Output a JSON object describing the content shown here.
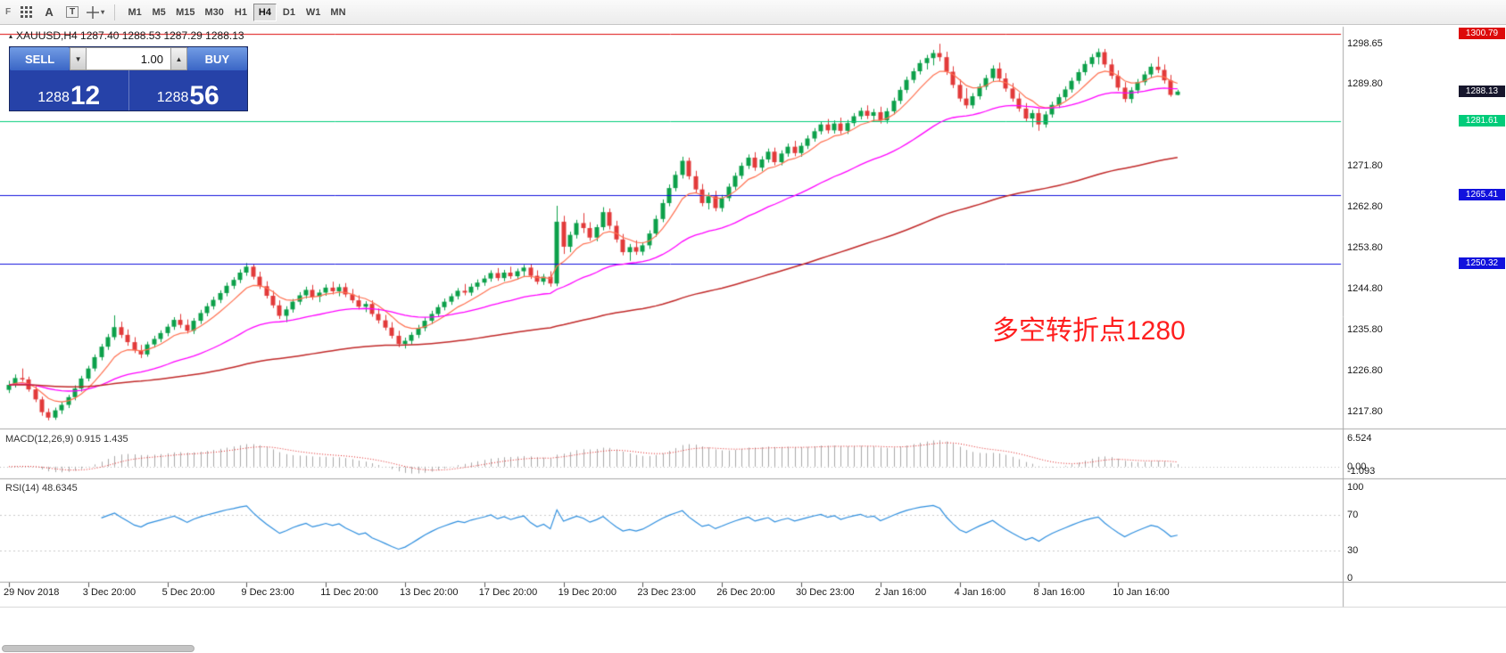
{
  "toolbar": {
    "letter_f": "F",
    "letter_a": "A",
    "letter_t": "T",
    "caret": "▾",
    "timeframes": [
      {
        "label": "M1",
        "active": false
      },
      {
        "label": "M5",
        "active": false
      },
      {
        "label": "M15",
        "active": false
      },
      {
        "label": "M30",
        "active": false
      },
      {
        "label": "H1",
        "active": false
      },
      {
        "label": "H4",
        "active": true
      },
      {
        "label": "D1",
        "active": false
      },
      {
        "label": "W1",
        "active": false
      },
      {
        "label": "MN",
        "active": false
      }
    ]
  },
  "header": {
    "marker": "▴",
    "symbol_line": "XAUUSD,H4  1287.40 1288.53 1287.29 1288.13"
  },
  "trade_panel": {
    "sell_label": "SELL",
    "buy_label": "BUY",
    "volume": "1.00",
    "spin_down": "▼",
    "spin_up": "▲",
    "sell_big": "1288",
    "sell_sup": "12",
    "buy_big": "1288",
    "buy_sup": "56"
  },
  "annotation": {
    "text": "多空转折点1280",
    "color": "#ff1f1f"
  },
  "panels": {
    "macd_label": "MACD(12,26,9) 0.915 1.435",
    "rsi_label": "RSI(14) 48.6345",
    "macd_axis": [
      {
        "text": "6.524",
        "value": 6.524
      },
      {
        "text": "0.00",
        "value": 0
      },
      {
        "text": "-1.093",
        "value": -1.093
      }
    ],
    "rsi_axis": [
      {
        "text": "100",
        "value": 100
      },
      {
        "text": "70",
        "value": 70
      },
      {
        "text": "30",
        "value": 30
      },
      {
        "text": "0",
        "value": 0
      }
    ]
  },
  "price_axis": {
    "labels": [
      {
        "text": "1298.65",
        "price": 1298.65
      },
      {
        "text": "1289.80",
        "price": 1289.8
      },
      {
        "text": "1271.80",
        "price": 1271.8
      },
      {
        "text": "1262.80",
        "price": 1262.8
      },
      {
        "text": "1253.80",
        "price": 1253.8
      },
      {
        "text": "1244.80",
        "price": 1244.8
      },
      {
        "text": "1235.80",
        "price": 1235.8
      },
      {
        "text": "1226.80",
        "price": 1226.8
      },
      {
        "text": "1217.80",
        "price": 1217.8
      }
    ],
    "badges": [
      {
        "text": "1300.79",
        "price": 1300.79,
        "bg": "#dd0b0b"
      },
      {
        "text": "1288.13",
        "price": 1288.13,
        "bg": "#16162c"
      },
      {
        "text": "1281.61",
        "price": 1281.61,
        "bg": "#00cc7a"
      },
      {
        "text": "1265.41",
        "price": 1265.41,
        "bg": "#1111dd"
      },
      {
        "text": "1250.32",
        "price": 1250.32,
        "bg": "#1111dd"
      }
    ]
  },
  "time_axis": {
    "labels": [
      {
        "text": "29 Nov 2018",
        "bar": 0
      },
      {
        "text": "3 Dec 20:00",
        "bar": 12
      },
      {
        "text": "5 Dec 20:00",
        "bar": 24
      },
      {
        "text": "9 Dec 23:00",
        "bar": 36
      },
      {
        "text": "11 Dec 20:00",
        "bar": 48
      },
      {
        "text": "13 Dec 20:00",
        "bar": 60
      },
      {
        "text": "17 Dec 20:00",
        "bar": 72
      },
      {
        "text": "19 Dec 20:00",
        "bar": 84
      },
      {
        "text": "23 Dec 23:00",
        "bar": 96
      },
      {
        "text": "26 Dec 20:00",
        "bar": 108
      },
      {
        "text": "30 Dec 23:00",
        "bar": 120
      },
      {
        "text": "2 Jan 16:00",
        "bar": 132
      },
      {
        "text": "4 Jan 16:00",
        "bar": 144
      },
      {
        "text": "8 Jan 16:00",
        "bar": 156
      },
      {
        "text": "10 Jan 16:00",
        "bar": 168
      }
    ]
  },
  "chart_data": {
    "type": "candlestick",
    "symbol": "XAUUSD",
    "timeframe": "H4",
    "current_ohlc": {
      "open": 1287.4,
      "high": 1288.53,
      "low": 1287.29,
      "close": 1288.13
    },
    "y_range": {
      "min": 1214.0,
      "max": 1302.4
    },
    "bar_spacing": 7.4,
    "colors": {
      "up": "#0ca04a",
      "down": "#e23a3a"
    },
    "hlines": [
      {
        "price": 1300.79,
        "color": "#dd0b0b"
      },
      {
        "price": 1281.61,
        "color": "#00cc7a"
      },
      {
        "price": 1265.41,
        "color": "#1111dd"
      },
      {
        "price": 1250.32,
        "color": "#1111dd"
      }
    ],
    "ma": [
      {
        "type": "ema",
        "period": 8,
        "color": "#ff7050",
        "width": 1.2
      },
      {
        "type": "ema",
        "period": 34,
        "color": "#ff00ff",
        "width": 1.3
      },
      {
        "type": "ema",
        "period": 120,
        "color": "#c02828",
        "width": 1.5
      }
    ],
    "macd_params": [
      12,
      26,
      9
    ],
    "macd_range": {
      "min": -2.3,
      "max": 7.8
    },
    "rsi_period": 14,
    "candles": [
      [
        1222.5,
        1224.5,
        1221.8,
        1223.6
      ],
      [
        1223.6,
        1225.9,
        1223.0,
        1225.1
      ],
      [
        1225.1,
        1227.2,
        1224.3,
        1224.8
      ],
      [
        1224.8,
        1225.4,
        1222.1,
        1222.6
      ],
      [
        1222.6,
        1223.3,
        1219.8,
        1220.4
      ],
      [
        1220.4,
        1221.0,
        1216.8,
        1217.6
      ],
      [
        1217.6,
        1218.4,
        1215.8,
        1216.4
      ],
      [
        1216.4,
        1218.6,
        1215.9,
        1218.0
      ],
      [
        1218.0,
        1219.9,
        1217.2,
        1219.2
      ],
      [
        1219.2,
        1221.4,
        1218.5,
        1220.9
      ],
      [
        1220.9,
        1223.5,
        1220.2,
        1222.8
      ],
      [
        1222.8,
        1225.6,
        1222.1,
        1225.0
      ],
      [
        1225.0,
        1227.8,
        1224.4,
        1227.2
      ],
      [
        1227.2,
        1230.3,
        1226.6,
        1229.7
      ],
      [
        1229.7,
        1232.6,
        1229.0,
        1232.0
      ],
      [
        1232.0,
        1234.8,
        1231.3,
        1234.1
      ],
      [
        1234.1,
        1238.9,
        1233.5,
        1236.3
      ],
      [
        1236.3,
        1237.5,
        1233.9,
        1234.6
      ],
      [
        1234.6,
        1235.8,
        1232.2,
        1233.0
      ],
      [
        1233.0,
        1234.1,
        1230.6,
        1231.2
      ],
      [
        1231.2,
        1232.4,
        1229.5,
        1230.3
      ],
      [
        1230.3,
        1233.1,
        1229.8,
        1232.5
      ],
      [
        1232.5,
        1234.4,
        1231.8,
        1233.7
      ],
      [
        1233.7,
        1235.6,
        1233.0,
        1235.0
      ],
      [
        1235.0,
        1237.0,
        1234.3,
        1236.4
      ],
      [
        1236.4,
        1238.5,
        1235.7,
        1237.9
      ],
      [
        1237.9,
        1239.2,
        1236.1,
        1236.8
      ],
      [
        1236.8,
        1238.0,
        1234.9,
        1235.5
      ],
      [
        1235.5,
        1238.3,
        1234.8,
        1237.7
      ],
      [
        1237.7,
        1240.1,
        1237.0,
        1239.4
      ],
      [
        1239.4,
        1241.6,
        1238.7,
        1240.9
      ],
      [
        1240.9,
        1243.0,
        1240.2,
        1242.3
      ],
      [
        1242.3,
        1244.4,
        1241.6,
        1243.8
      ],
      [
        1243.8,
        1246.1,
        1243.1,
        1245.4
      ],
      [
        1245.4,
        1247.3,
        1244.7,
        1246.7
      ],
      [
        1246.7,
        1249.0,
        1246.0,
        1248.3
      ],
      [
        1248.3,
        1250.4,
        1247.6,
        1249.6
      ],
      [
        1249.6,
        1250.2,
        1246.8,
        1247.4
      ],
      [
        1247.4,
        1248.5,
        1244.7,
        1245.3
      ],
      [
        1245.3,
        1246.4,
        1242.6,
        1243.2
      ],
      [
        1243.2,
        1244.3,
        1240.5,
        1241.1
      ],
      [
        1241.1,
        1242.2,
        1238.1,
        1238.8
      ],
      [
        1238.8,
        1240.9,
        1237.4,
        1240.2
      ],
      [
        1240.2,
        1242.5,
        1239.5,
        1241.9
      ],
      [
        1241.9,
        1244.0,
        1241.2,
        1243.3
      ],
      [
        1243.3,
        1245.2,
        1242.6,
        1244.5
      ],
      [
        1244.5,
        1245.6,
        1242.3,
        1243.0
      ],
      [
        1243.0,
        1244.6,
        1241.8,
        1243.9
      ],
      [
        1243.9,
        1245.7,
        1243.2,
        1245.0
      ],
      [
        1245.0,
        1246.3,
        1243.5,
        1244.2
      ],
      [
        1244.2,
        1245.8,
        1243.1,
        1245.1
      ],
      [
        1245.1,
        1246.0,
        1242.9,
        1243.5
      ],
      [
        1243.5,
        1244.7,
        1241.6,
        1242.2
      ],
      [
        1242.2,
        1243.3,
        1240.2,
        1240.8
      ],
      [
        1240.8,
        1242.0,
        1239.6,
        1241.4
      ],
      [
        1241.4,
        1242.2,
        1238.6,
        1239.2
      ],
      [
        1239.2,
        1240.4,
        1237.1,
        1237.8
      ],
      [
        1237.8,
        1239.0,
        1235.6,
        1236.2
      ],
      [
        1236.2,
        1237.4,
        1233.8,
        1234.4
      ],
      [
        1234.4,
        1235.5,
        1231.9,
        1232.6
      ],
      [
        1232.6,
        1234.0,
        1231.6,
        1233.3
      ],
      [
        1233.3,
        1235.2,
        1232.5,
        1234.6
      ],
      [
        1234.6,
        1236.8,
        1233.9,
        1236.1
      ],
      [
        1236.1,
        1238.4,
        1235.4,
        1237.7
      ],
      [
        1237.7,
        1239.9,
        1237.0,
        1239.2
      ],
      [
        1239.2,
        1241.3,
        1238.5,
        1240.7
      ],
      [
        1240.7,
        1242.6,
        1240.0,
        1241.9
      ],
      [
        1241.9,
        1243.7,
        1241.2,
        1243.1
      ],
      [
        1243.1,
        1244.9,
        1242.4,
        1244.3
      ],
      [
        1244.3,
        1245.8,
        1243.3,
        1243.9
      ],
      [
        1243.9,
        1245.9,
        1243.2,
        1245.2
      ],
      [
        1245.2,
        1246.8,
        1244.5,
        1246.1
      ],
      [
        1246.1,
        1247.7,
        1245.4,
        1247.0
      ],
      [
        1247.0,
        1248.8,
        1246.3,
        1248.2
      ],
      [
        1248.2,
        1249.3,
        1246.5,
        1247.1
      ],
      [
        1247.1,
        1248.9,
        1246.4,
        1248.3
      ],
      [
        1248.3,
        1249.6,
        1246.9,
        1247.5
      ],
      [
        1247.5,
        1249.2,
        1246.8,
        1248.6
      ],
      [
        1248.6,
        1250.0,
        1247.3,
        1249.4
      ],
      [
        1249.4,
        1250.1,
        1246.9,
        1247.6
      ],
      [
        1247.6,
        1248.8,
        1245.7,
        1246.3
      ],
      [
        1246.3,
        1248.0,
        1245.6,
        1247.4
      ],
      [
        1247.4,
        1248.6,
        1245.2,
        1245.9
      ],
      [
        1245.9,
        1263.0,
        1245.3,
        1259.5
      ],
      [
        1259.5,
        1260.8,
        1252.4,
        1254.0
      ],
      [
        1254.0,
        1257.3,
        1252.8,
        1256.6
      ],
      [
        1256.6,
        1259.9,
        1255.8,
        1259.2
      ],
      [
        1259.2,
        1261.4,
        1257.0,
        1258.1
      ],
      [
        1258.1,
        1259.4,
        1255.3,
        1256.0
      ],
      [
        1256.0,
        1258.9,
        1255.2,
        1258.3
      ],
      [
        1258.3,
        1262.7,
        1257.6,
        1261.6
      ],
      [
        1261.6,
        1262.4,
        1257.8,
        1258.6
      ],
      [
        1258.6,
        1259.7,
        1254.9,
        1255.6
      ],
      [
        1255.6,
        1256.8,
        1252.1,
        1252.8
      ],
      [
        1252.8,
        1254.6,
        1250.9,
        1253.9
      ],
      [
        1253.9,
        1255.4,
        1252.2,
        1252.9
      ],
      [
        1252.9,
        1255.0,
        1252.1,
        1254.3
      ],
      [
        1254.3,
        1257.6,
        1253.5,
        1256.9
      ],
      [
        1256.9,
        1260.9,
        1256.2,
        1260.1
      ],
      [
        1260.1,
        1264.4,
        1259.4,
        1263.6
      ],
      [
        1263.6,
        1267.7,
        1262.9,
        1266.9
      ],
      [
        1266.9,
        1270.6,
        1266.2,
        1269.8
      ],
      [
        1269.8,
        1273.8,
        1269.0,
        1272.9
      ],
      [
        1272.9,
        1273.6,
        1268.8,
        1269.5
      ],
      [
        1269.5,
        1270.7,
        1265.9,
        1266.6
      ],
      [
        1266.6,
        1267.8,
        1262.9,
        1263.6
      ],
      [
        1263.6,
        1265.9,
        1262.2,
        1265.1
      ],
      [
        1265.1,
        1266.3,
        1261.8,
        1262.5
      ],
      [
        1262.5,
        1265.4,
        1261.7,
        1264.7
      ],
      [
        1264.7,
        1267.9,
        1264.0,
        1267.2
      ],
      [
        1267.2,
        1270.3,
        1266.5,
        1269.6
      ],
      [
        1269.6,
        1272.5,
        1268.9,
        1271.8
      ],
      [
        1271.8,
        1274.3,
        1271.1,
        1273.6
      ],
      [
        1273.6,
        1274.8,
        1270.7,
        1271.4
      ],
      [
        1271.4,
        1273.9,
        1270.6,
        1273.2
      ],
      [
        1273.2,
        1275.6,
        1272.5,
        1274.9
      ],
      [
        1274.9,
        1275.8,
        1271.9,
        1272.6
      ],
      [
        1272.6,
        1275.2,
        1271.9,
        1274.5
      ],
      [
        1274.5,
        1276.7,
        1273.8,
        1276.0
      ],
      [
        1276.0,
        1277.3,
        1273.9,
        1274.6
      ],
      [
        1274.6,
        1276.9,
        1273.8,
        1276.2
      ],
      [
        1276.2,
        1278.5,
        1275.5,
        1277.8
      ],
      [
        1277.8,
        1280.1,
        1277.1,
        1279.4
      ],
      [
        1279.4,
        1281.6,
        1278.7,
        1280.9
      ],
      [
        1280.9,
        1282.1,
        1278.9,
        1279.6
      ],
      [
        1279.6,
        1281.8,
        1278.9,
        1281.1
      ],
      [
        1281.1,
        1282.4,
        1278.8,
        1279.5
      ],
      [
        1279.5,
        1281.9,
        1278.8,
        1281.2
      ],
      [
        1281.2,
        1283.4,
        1280.5,
        1282.7
      ],
      [
        1282.7,
        1284.6,
        1282.0,
        1283.9
      ],
      [
        1283.9,
        1285.1,
        1282.1,
        1282.8
      ],
      [
        1282.8,
        1284.3,
        1281.5,
        1283.6
      ],
      [
        1283.6,
        1284.8,
        1281.1,
        1281.8
      ],
      [
        1281.8,
        1284.5,
        1281.1,
        1283.8
      ],
      [
        1283.8,
        1286.8,
        1283.1,
        1286.1
      ],
      [
        1286.1,
        1289.2,
        1285.4,
        1288.5
      ],
      [
        1288.5,
        1291.4,
        1287.8,
        1290.7
      ],
      [
        1290.7,
        1293.3,
        1290.0,
        1292.6
      ],
      [
        1292.6,
        1295.1,
        1291.9,
        1294.4
      ],
      [
        1294.4,
        1296.2,
        1293.0,
        1295.5
      ],
      [
        1295.5,
        1297.3,
        1293.9,
        1296.6
      ],
      [
        1296.6,
        1298.65,
        1294.8,
        1295.7
      ],
      [
        1295.7,
        1296.9,
        1291.8,
        1292.5
      ],
      [
        1292.5,
        1293.7,
        1288.9,
        1289.6
      ],
      [
        1289.6,
        1290.8,
        1285.9,
        1286.6
      ],
      [
        1286.6,
        1288.9,
        1284.4,
        1285.1
      ],
      [
        1285.1,
        1287.8,
        1284.4,
        1287.1
      ],
      [
        1287.1,
        1289.9,
        1286.4,
        1289.2
      ],
      [
        1289.2,
        1291.8,
        1288.5,
        1291.1
      ],
      [
        1291.1,
        1293.9,
        1290.4,
        1293.2
      ],
      [
        1293.2,
        1294.5,
        1290.3,
        1291.0
      ],
      [
        1291.0,
        1292.2,
        1288.1,
        1288.8
      ],
      [
        1288.8,
        1290.0,
        1285.9,
        1286.6
      ],
      [
        1286.6,
        1287.8,
        1283.7,
        1284.4
      ],
      [
        1284.4,
        1285.6,
        1281.5,
        1282.2
      ],
      [
        1282.2,
        1284.1,
        1280.3,
        1283.4
      ],
      [
        1283.4,
        1284.3,
        1279.5,
        1280.9
      ],
      [
        1280.9,
        1283.8,
        1280.2,
        1283.1
      ],
      [
        1283.1,
        1285.9,
        1282.4,
        1285.2
      ],
      [
        1285.2,
        1287.6,
        1284.5,
        1286.9
      ],
      [
        1286.9,
        1289.3,
        1286.2,
        1288.6
      ],
      [
        1288.6,
        1291.2,
        1287.9,
        1290.5
      ],
      [
        1290.5,
        1293.1,
        1289.8,
        1292.4
      ],
      [
        1292.4,
        1294.9,
        1291.7,
        1294.2
      ],
      [
        1294.2,
        1296.4,
        1293.5,
        1295.7
      ],
      [
        1295.7,
        1297.6,
        1294.1,
        1296.8
      ],
      [
        1296.8,
        1297.5,
        1293.4,
        1294.1
      ],
      [
        1294.1,
        1295.3,
        1290.9,
        1291.6
      ],
      [
        1291.6,
        1292.8,
        1288.3,
        1289.0
      ],
      [
        1289.0,
        1290.2,
        1285.8,
        1286.5
      ],
      [
        1286.5,
        1289.1,
        1285.6,
        1288.4
      ],
      [
        1288.4,
        1290.9,
        1287.7,
        1290.2
      ],
      [
        1290.2,
        1292.6,
        1289.5,
        1291.9
      ],
      [
        1291.9,
        1294.3,
        1291.2,
        1293.6
      ],
      [
        1293.6,
        1295.8,
        1292.2,
        1292.9
      ],
      [
        1292.9,
        1294.1,
        1289.9,
        1290.6
      ],
      [
        1290.6,
        1291.8,
        1287.0,
        1287.4
      ],
      [
        1287.4,
        1288.53,
        1287.29,
        1288.13
      ]
    ]
  }
}
